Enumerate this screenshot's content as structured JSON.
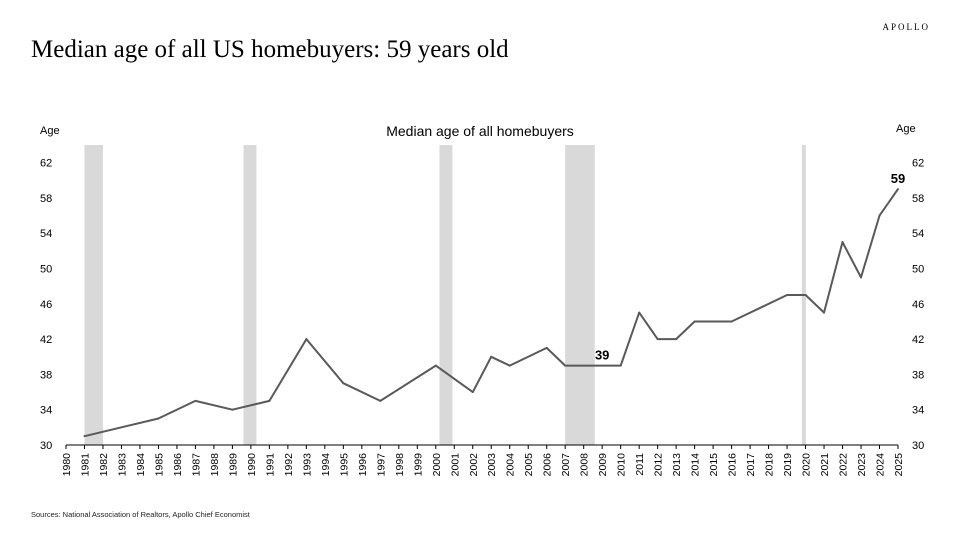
{
  "brand": "APOLLO",
  "headline": "Median age of all US homebuyers: 59 years old",
  "source": "Sources: National Association of Realtors, Apollo Chief Economist",
  "chart_data": {
    "type": "line",
    "title": "Median age of all homebuyers",
    "ylabel_left": "Age",
    "ylabel_right": "Age",
    "ylim": [
      30,
      64
    ],
    "yticks": [
      30,
      34,
      38,
      42,
      46,
      50,
      54,
      58,
      62
    ],
    "xlim": [
      1980,
      2025
    ],
    "xticks": [
      "1980",
      "1981",
      "1982",
      "1983",
      "1984",
      "1985",
      "1986",
      "1987",
      "1988",
      "1989",
      "1990",
      "1991",
      "1992",
      "1993",
      "1994",
      "1995",
      "1996",
      "1997",
      "1998",
      "1999",
      "2000",
      "2001",
      "2002",
      "2003",
      "2004",
      "2005",
      "2006",
      "2007",
      "2008",
      "2009",
      "2010",
      "2011",
      "2012",
      "2013",
      "2014",
      "2015",
      "2016",
      "2017",
      "2018",
      "2019",
      "2020",
      "2021",
      "2022",
      "2023",
      "2024",
      "2025"
    ],
    "series": [
      {
        "name": "",
        "color": "#595959",
        "x": [
          1981,
          1985,
          1987,
          1989,
          1991,
          1993,
          1995,
          1997,
          2000,
          2002,
          2003,
          2004,
          2006,
          2007,
          2010,
          2011,
          2012,
          2013,
          2014,
          2016,
          2019,
          2020,
          2021,
          2022,
          2023,
          2024,
          2025
        ],
        "y": [
          31,
          33,
          35,
          34,
          35,
          42,
          37,
          35,
          39,
          36,
          40,
          39,
          41,
          39,
          39,
          45,
          42,
          42,
          44,
          44,
          47,
          47,
          45,
          53,
          49,
          56,
          59
        ]
      }
    ],
    "recessions": [
      {
        "start": 1981.0,
        "end": 1982.0
      },
      {
        "start": 1989.6,
        "end": 1990.3
      },
      {
        "start": 2000.2,
        "end": 2000.9
      },
      {
        "start": 2007.0,
        "end": 2008.6
      },
      {
        "start": 2019.8,
        "end": 2020.0
      }
    ],
    "recession_color": "#d9d9d9",
    "annotations": [
      {
        "x": 2009,
        "y": 39,
        "text": "39"
      },
      {
        "x": 2025,
        "y": 59,
        "text": "59"
      }
    ],
    "grid": false
  }
}
